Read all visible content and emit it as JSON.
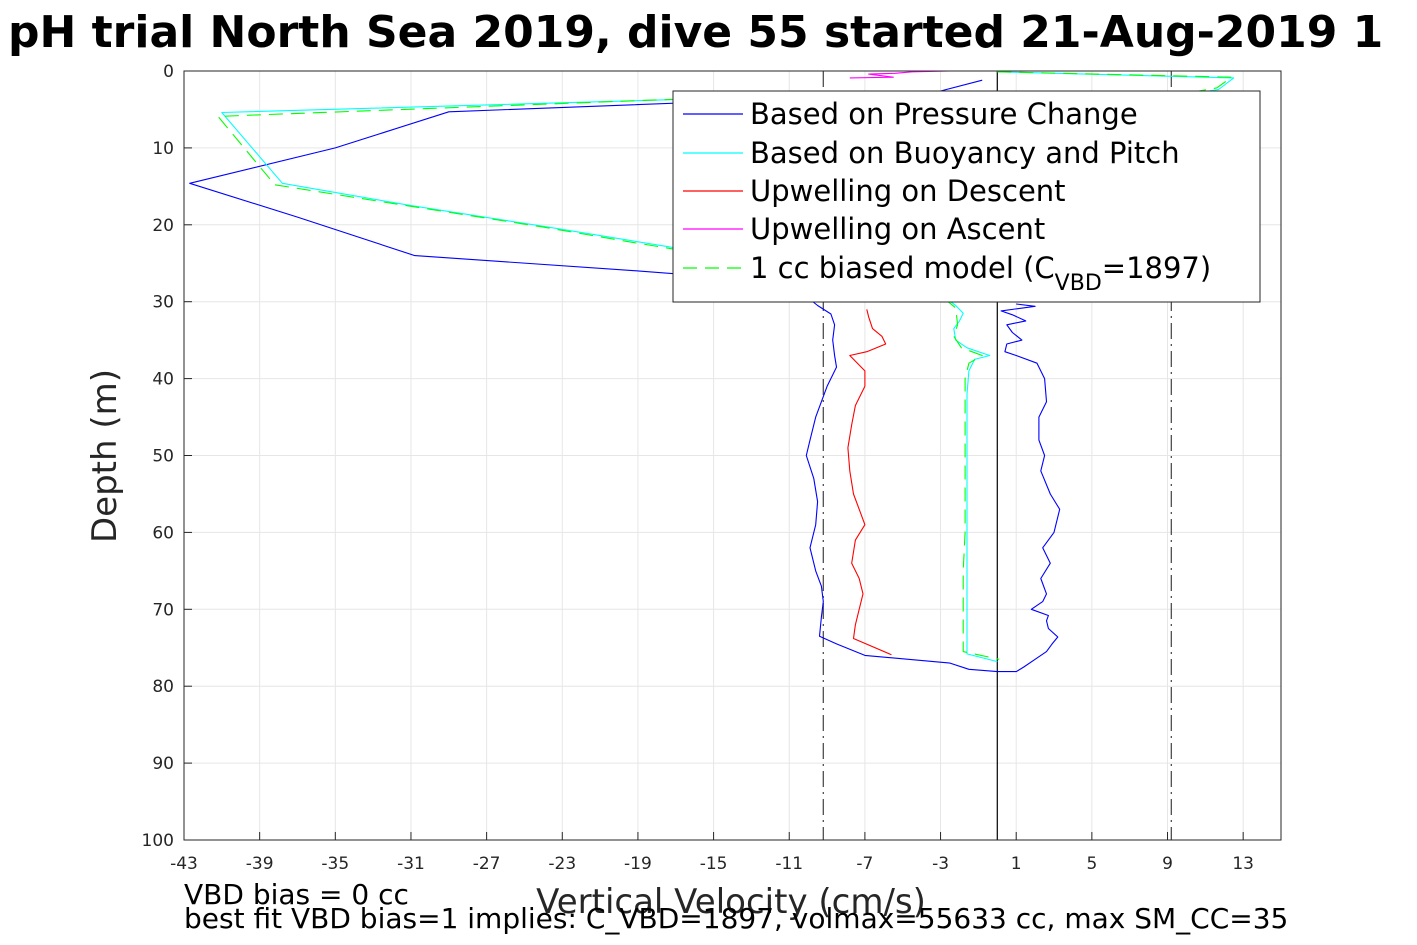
{
  "chart_data": {
    "type": "line",
    "title": "pH trial North Sea 2019, dive 55 started 21-Aug-2019 1",
    "xlabel": "Vertical Velocity (cm/s)",
    "ylabel": "Depth (m)",
    "xlim": [
      -43,
      15
    ],
    "ylim": [
      0,
      100
    ],
    "y_reversed": true,
    "grid": true,
    "xticks": [
      "-43",
      "-39",
      "-35",
      "-31",
      "-27",
      "-23",
      "-19",
      "-15",
      "-11",
      "-7",
      "-3",
      "1",
      "5",
      "9",
      "13"
    ],
    "yticks": [
      "0",
      "10",
      "20",
      "30",
      "40",
      "50",
      "60",
      "70",
      "80",
      "90",
      "100"
    ],
    "legend_location": "top-right",
    "series": [
      {
        "name": "Based on Pressure Change",
        "color": "#0000ff",
        "dash": "none",
        "points": [
          [
            -0.8,
            1.2
          ],
          [
            -3.0,
            2.6
          ],
          [
            -14.0,
            3.9
          ],
          [
            -29.0,
            5.3
          ],
          [
            -35.0,
            10.0
          ],
          [
            -42.7,
            14.6
          ],
          [
            -37.0,
            19.0
          ],
          [
            -30.8,
            24.0
          ],
          [
            -19.0,
            26.0
          ],
          [
            -11.0,
            27.5
          ],
          [
            -10.0,
            29.5
          ],
          [
            -9.5,
            30.5
          ],
          [
            -8.8,
            31.6
          ],
          [
            -8.6,
            33.0
          ],
          [
            -8.7,
            35.0
          ],
          [
            -8.6,
            37.0
          ],
          [
            -8.5,
            38.5
          ],
          [
            -9.0,
            41.0
          ],
          [
            -9.6,
            45.0
          ],
          [
            -9.9,
            48.0
          ],
          [
            -10.1,
            50.0
          ],
          [
            -9.7,
            53.0
          ],
          [
            -9.5,
            56.0
          ],
          [
            -9.6,
            59.0
          ],
          [
            -9.9,
            62.0
          ],
          [
            -9.6,
            65.0
          ],
          [
            -9.3,
            67.0
          ],
          [
            -9.2,
            69.0
          ],
          [
            -9.3,
            71.0
          ],
          [
            -9.4,
            73.5
          ],
          [
            -8.5,
            74.5
          ],
          [
            -7.0,
            76.0
          ],
          [
            -2.5,
            77.0
          ],
          [
            -1.5,
            77.8
          ],
          [
            0.0,
            78.1
          ],
          [
            1.0,
            78.1
          ],
          [
            1.4,
            77.5
          ],
          [
            2.0,
            76.5
          ],
          [
            2.6,
            75.5
          ],
          [
            2.9,
            74.5
          ],
          [
            3.2,
            73.6
          ],
          [
            2.7,
            72.5
          ],
          [
            2.6,
            71.5
          ],
          [
            2.7,
            70.8
          ],
          [
            1.8,
            70.0
          ],
          [
            2.4,
            69.0
          ],
          [
            2.6,
            68.0
          ],
          [
            2.3,
            66.0
          ],
          [
            2.8,
            64.0
          ],
          [
            2.4,
            62.0
          ],
          [
            3.0,
            60.0
          ],
          [
            3.3,
            57.0
          ],
          [
            2.8,
            55.0
          ],
          [
            2.3,
            52.0
          ],
          [
            2.5,
            50.0
          ],
          [
            2.2,
            48.0
          ],
          [
            2.2,
            45.0
          ],
          [
            2.6,
            43.0
          ],
          [
            2.5,
            40.0
          ],
          [
            2.1,
            38.0
          ],
          [
            1.0,
            37.0
          ],
          [
            0.4,
            36.5
          ],
          [
            0.5,
            35.5
          ],
          [
            1.3,
            35.0
          ],
          [
            0.8,
            34.0
          ],
          [
            0.5,
            33.0
          ],
          [
            1.5,
            32.5
          ],
          [
            0.8,
            31.7
          ],
          [
            0.2,
            31.2
          ],
          [
            2.0,
            30.6
          ],
          [
            1.0,
            30.3
          ]
        ]
      },
      {
        "name": "Based on Buoyancy and Pitch",
        "color": "#00ffff",
        "dash": "none",
        "points": [
          [
            0.0,
            0.1
          ],
          [
            12.5,
            0.9
          ],
          [
            11.7,
            2.4
          ],
          [
            9.0,
            3.4
          ],
          [
            -14.0,
            3.5
          ],
          [
            -41.0,
            5.4
          ],
          [
            -37.8,
            14.6
          ],
          [
            -31.0,
            17.5
          ],
          [
            -24.0,
            20.2
          ],
          [
            -19.5,
            22.0
          ],
          [
            -17.0,
            23.0
          ],
          [
            -11.0,
            25.0
          ],
          [
            -5.0,
            26.5
          ],
          [
            -3.0,
            29.0
          ],
          [
            -2.2,
            30.5
          ],
          [
            -1.8,
            31.5
          ],
          [
            -2.0,
            32.5
          ],
          [
            -2.3,
            33.5
          ],
          [
            -2.2,
            35.0
          ],
          [
            -1.6,
            36.0
          ],
          [
            -0.4,
            37.0
          ],
          [
            -1.2,
            37.5
          ],
          [
            -1.5,
            39.0
          ],
          [
            -1.6,
            42.0
          ],
          [
            -1.6,
            46.0
          ],
          [
            -1.6,
            50.0
          ],
          [
            -1.6,
            55.0
          ],
          [
            -1.6,
            60.0
          ],
          [
            -1.6,
            65.0
          ],
          [
            -1.6,
            70.0
          ],
          [
            -1.6,
            74.0
          ],
          [
            -1.6,
            75.8
          ],
          [
            0.0,
            76.8
          ]
        ]
      },
      {
        "name": "Upwelling on Descent",
        "color": "#ff0000",
        "dash": "none",
        "points": [
          [
            -5.6,
            75.9
          ],
          [
            -7.6,
            73.8
          ],
          [
            -7.5,
            72.0
          ],
          [
            -7.3,
            70.0
          ],
          [
            -7.1,
            68.0
          ],
          [
            -7.3,
            66.0
          ],
          [
            -7.7,
            64.0
          ],
          [
            -7.5,
            61.0
          ],
          [
            -7.0,
            59.0
          ],
          [
            -7.3,
            57.0
          ],
          [
            -7.6,
            55.0
          ],
          [
            -7.8,
            52.0
          ],
          [
            -7.9,
            49.0
          ],
          [
            -7.7,
            46.0
          ],
          [
            -7.5,
            43.5
          ],
          [
            -7.0,
            41.0
          ],
          [
            -7.0,
            39.0
          ],
          [
            -7.8,
            37.0
          ],
          [
            -6.9,
            36.5
          ],
          [
            -5.9,
            35.5
          ],
          [
            -6.1,
            34.5
          ],
          [
            -6.6,
            33.5
          ],
          [
            -6.8,
            32.0
          ],
          [
            -6.9,
            31.0
          ]
        ]
      },
      {
        "name": "Upwelling on Ascent",
        "color": "#ff00ff",
        "dash": "none",
        "points": [
          [
            -7.8,
            0.9
          ],
          [
            -5.5,
            0.8
          ],
          [
            -6.8,
            0.4
          ],
          [
            -5.4,
            0.3
          ],
          [
            -4.5,
            0.1
          ],
          [
            -2.5,
            0.0
          ]
        ]
      },
      {
        "name": "1 cc biased model (C_VBD=1897)",
        "color": "#00ff00",
        "dash": "dashed",
        "points": [
          [
            0.0,
            0.1
          ],
          [
            12.4,
            0.8
          ],
          [
            11.6,
            2.2
          ],
          [
            9.0,
            3.3
          ],
          [
            -14.0,
            3.4
          ],
          [
            -41.2,
            5.9
          ],
          [
            -38.2,
            14.8
          ],
          [
            -31.0,
            17.6
          ],
          [
            -24.0,
            20.3
          ],
          [
            -19.5,
            22.2
          ],
          [
            -17.0,
            23.2
          ],
          [
            -11.0,
            25.2
          ],
          [
            -5.0,
            26.6
          ],
          [
            -3.0,
            29.2
          ],
          [
            -2.2,
            30.8
          ],
          [
            -2.1,
            33.0
          ],
          [
            -2.3,
            34.5
          ],
          [
            -1.9,
            36.0
          ],
          [
            -0.8,
            37.0
          ],
          [
            -1.5,
            38.0
          ],
          [
            -1.7,
            40.0
          ],
          [
            -1.7,
            45.0
          ],
          [
            -1.7,
            50.0
          ],
          [
            -1.7,
            55.0
          ],
          [
            -1.7,
            60.0
          ],
          [
            -1.8,
            65.0
          ],
          [
            -1.8,
            70.0
          ],
          [
            -1.8,
            74.0
          ],
          [
            -1.8,
            75.5
          ],
          [
            0.1,
            76.5
          ]
        ]
      }
    ],
    "reference_lines": [
      {
        "x": 0,
        "style": "solid",
        "color": "#000000"
      },
      {
        "x": -9.2,
        "style": "dashdot",
        "color": "#404040"
      },
      {
        "x": 9.2,
        "style": "dashdot",
        "color": "#404040"
      }
    ],
    "legend": {
      "entries": [
        "Based on Pressure Change",
        "Based on Buoyancy and Pitch",
        "Upwelling on Descent",
        "Upwelling on Ascent"
      ],
      "model_prefix": "1 cc biased model (C",
      "model_sub": "VBD",
      "model_suffix": "=1897)"
    },
    "annotations": {
      "bias": "VBD bias = 0 cc",
      "fit": "best fit VBD bias=1 implies: C_VBD=1897, volmax=55633 cc, max SM_CC=35"
    }
  }
}
